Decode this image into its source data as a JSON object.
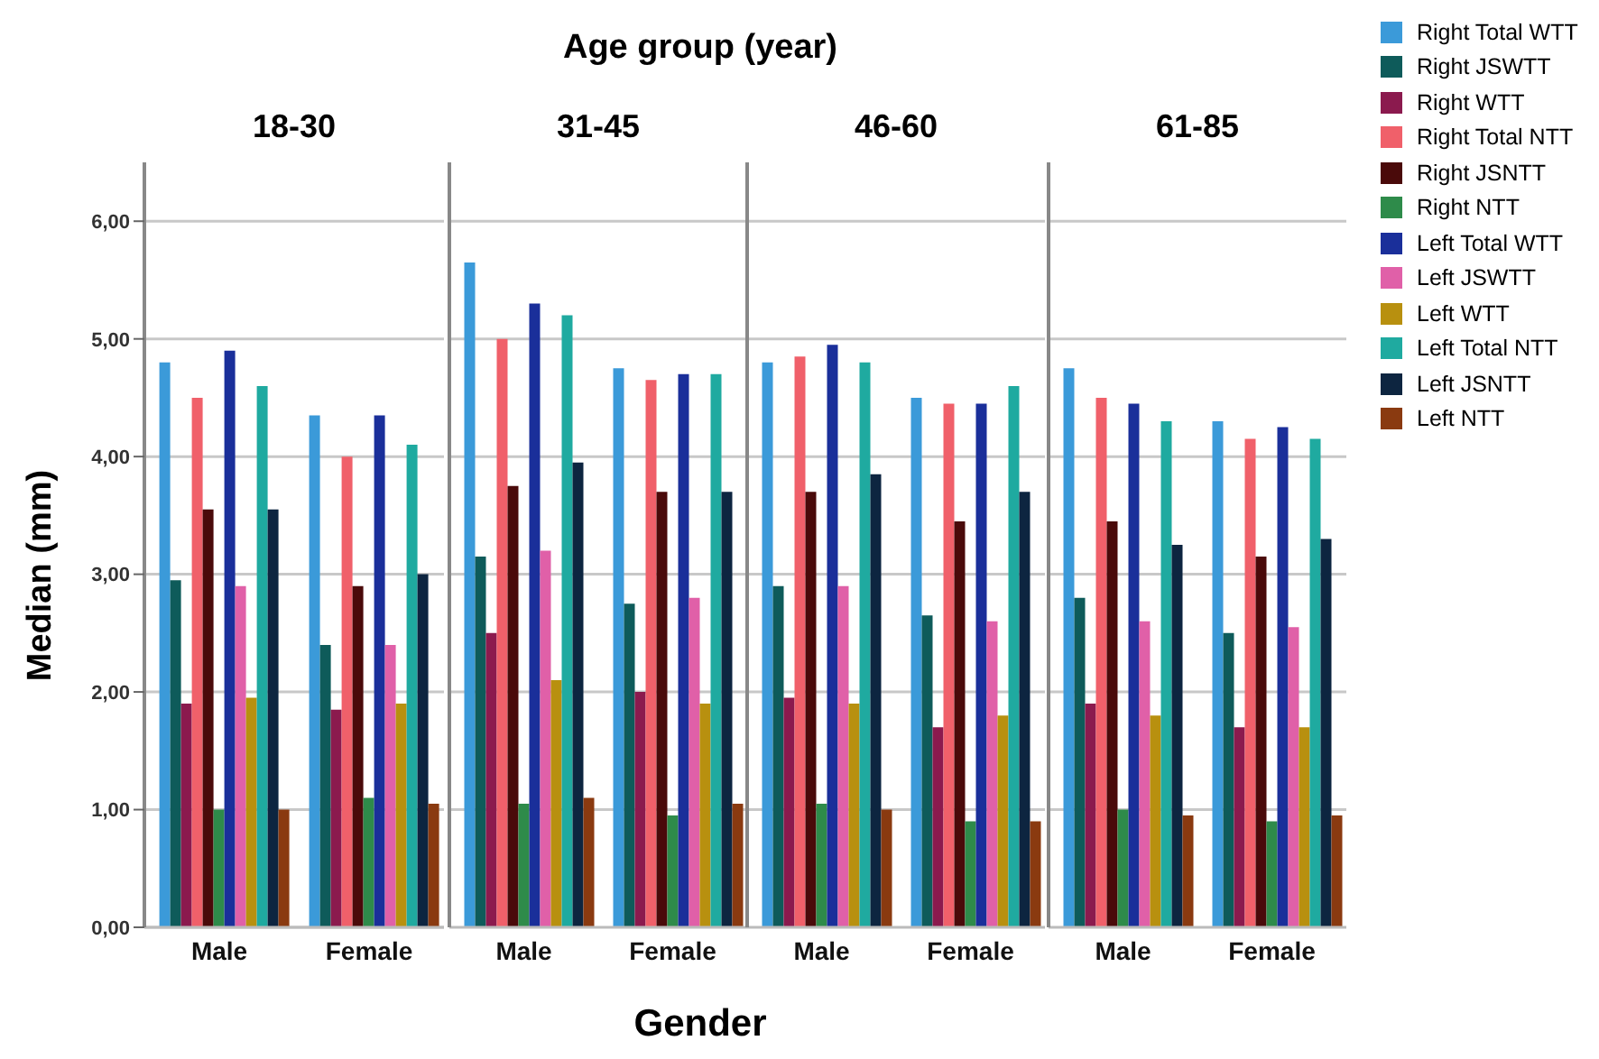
{
  "chart_data": [
    {
      "type": "bar",
      "title": "18-30",
      "xlabel": "Gender",
      "ylabel": "Median (mm)",
      "annotations": [
        "Age group (year)"
      ],
      "categories": [
        "Male",
        "Female"
      ],
      "ylim": [
        0,
        6.5
      ],
      "yticks": [
        {
          "value": 0,
          "label": "0,00"
        },
        {
          "value": 1,
          "label": "1,00"
        },
        {
          "value": 2,
          "label": "2,00"
        },
        {
          "value": 3,
          "label": "3,00"
        },
        {
          "value": 4,
          "label": "4,00"
        },
        {
          "value": 5,
          "label": "5,00"
        },
        {
          "value": 6,
          "label": "6,00"
        }
      ],
      "grid": "y",
      "legend": "top right",
      "series": [
        {
          "name": "Right Total WTT",
          "color": "#3b9ad9",
          "values": [
            4.8,
            4.35
          ]
        },
        {
          "name": "Right JSWTT",
          "color": "#0e5b5a",
          "values": [
            2.95,
            2.4
          ]
        },
        {
          "name": "Right WTT",
          "color": "#8b1a4e",
          "values": [
            1.9,
            1.85
          ]
        },
        {
          "name": "Right Total NTT",
          "color": "#f0606a",
          "values": [
            4.5,
            4.0
          ]
        },
        {
          "name": "Right JSNTT",
          "color": "#4a0a0a",
          "values": [
            3.55,
            2.9
          ]
        },
        {
          "name": "Right NTT",
          "color": "#2e8b4a",
          "values": [
            1.0,
            1.1
          ]
        },
        {
          "name": "Left Total WTT",
          "color": "#1a2f9a",
          "values": [
            4.9,
            4.35
          ]
        },
        {
          "name": "Left JSWTT",
          "color": "#e060a8",
          "values": [
            2.9,
            2.4
          ]
        },
        {
          "name": "Left WTT",
          "color": "#b8900f",
          "values": [
            1.95,
            1.9
          ]
        },
        {
          "name": "Left Total NTT",
          "color": "#1faaa0",
          "values": [
            4.6,
            4.1
          ]
        },
        {
          "name": "Left JSNTT",
          "color": "#0d2540",
          "values": [
            3.55,
            3.0
          ]
        },
        {
          "name": "Left NTT",
          "color": "#8a3a10",
          "values": [
            1.0,
            1.05
          ]
        }
      ]
    },
    {
      "type": "bar",
      "title": "31-45",
      "categories": [
        "Male",
        "Female"
      ],
      "ylim": [
        0,
        6.5
      ],
      "yticks": [
        1,
        2,
        3,
        4,
        5,
        6
      ],
      "grid": "y",
      "tick_labels": "x",
      "series": [
        {
          "color": "#3b9ad9",
          "values": [
            5.65,
            4.75
          ]
        },
        {
          "color": "#0e5b5a",
          "values": [
            3.15,
            2.75
          ]
        },
        {
          "color": "#8b1a4e",
          "values": [
            2.5,
            2.0
          ]
        },
        {
          "color": "#f0606a",
          "values": [
            5.0,
            4.65
          ]
        },
        {
          "color": "#4a0a0a",
          "values": [
            3.75,
            3.7
          ]
        },
        {
          "color": "#2e8b4a",
          "values": [
            1.05,
            0.95
          ]
        },
        {
          "color": "#1a2f9a",
          "values": [
            5.3,
            4.7
          ]
        },
        {
          "color": "#e060a8",
          "values": [
            3.2,
            2.8
          ]
        },
        {
          "color": "#b8900f",
          "values": [
            2.1,
            1.9
          ]
        },
        {
          "color": "#1faaa0",
          "values": [
            5.2,
            4.7
          ]
        },
        {
          "color": "#0d2540",
          "values": [
            3.95,
            3.7
          ]
        },
        {
          "color": "#8a3a10",
          "values": [
            1.1,
            1.05
          ]
        }
      ]
    },
    {
      "type": "bar",
      "title": "46-60",
      "categories": [
        "Male",
        "Female"
      ],
      "ylim": [
        0,
        6.5
      ],
      "yticks": [
        1,
        2,
        3,
        4,
        5,
        6
      ],
      "grid": "y",
      "tick_labels": "x",
      "series": [
        {
          "color": "#3b9ad9",
          "values": [
            4.8,
            4.5
          ]
        },
        {
          "color": "#0e5b5a",
          "values": [
            2.9,
            2.65
          ]
        },
        {
          "color": "#8b1a4e",
          "values": [
            1.95,
            1.7
          ]
        },
        {
          "color": "#f0606a",
          "values": [
            4.85,
            4.45
          ]
        },
        {
          "color": "#4a0a0a",
          "values": [
            3.7,
            3.45
          ]
        },
        {
          "color": "#2e8b4a",
          "values": [
            1.05,
            0.9
          ]
        },
        {
          "color": "#1a2f9a",
          "values": [
            4.95,
            4.45
          ]
        },
        {
          "color": "#e060a8",
          "values": [
            2.9,
            2.6
          ]
        },
        {
          "color": "#b8900f",
          "values": [
            1.9,
            1.8
          ]
        },
        {
          "color": "#1faaa0",
          "values": [
            4.8,
            4.6
          ]
        },
        {
          "color": "#0d2540",
          "values": [
            3.85,
            3.7
          ]
        },
        {
          "color": "#8a3a10",
          "values": [
            1.0,
            0.9
          ]
        }
      ]
    },
    {
      "type": "bar",
      "title": "61-85",
      "categories": [
        "Male",
        "Female"
      ],
      "ylim": [
        0,
        6.5
      ],
      "yticks": [
        1,
        2,
        3,
        4,
        5,
        6
      ],
      "grid": "y",
      "tick_labels": "x",
      "series": [
        {
          "color": "#3b9ad9",
          "values": [
            4.75,
            4.3
          ]
        },
        {
          "color": "#0e5b5a",
          "values": [
            2.8,
            2.5
          ]
        },
        {
          "color": "#8b1a4e",
          "values": [
            1.9,
            1.7
          ]
        },
        {
          "color": "#f0606a",
          "values": [
            4.5,
            4.15
          ]
        },
        {
          "color": "#4a0a0a",
          "values": [
            3.45,
            3.15
          ]
        },
        {
          "color": "#2e8b4a",
          "values": [
            1.0,
            0.9
          ]
        },
        {
          "color": "#1a2f9a",
          "values": [
            4.45,
            4.25
          ]
        },
        {
          "color": "#e060a8",
          "values": [
            2.6,
            2.55
          ]
        },
        {
          "color": "#b8900f",
          "values": [
            1.8,
            1.7
          ]
        },
        {
          "color": "#1faaa0",
          "values": [
            4.3,
            4.15
          ]
        },
        {
          "color": "#0d2540",
          "values": [
            3.25,
            3.3
          ]
        },
        {
          "color": "#8a3a10",
          "values": [
            0.95,
            0.95
          ]
        }
      ]
    }
  ]
}
